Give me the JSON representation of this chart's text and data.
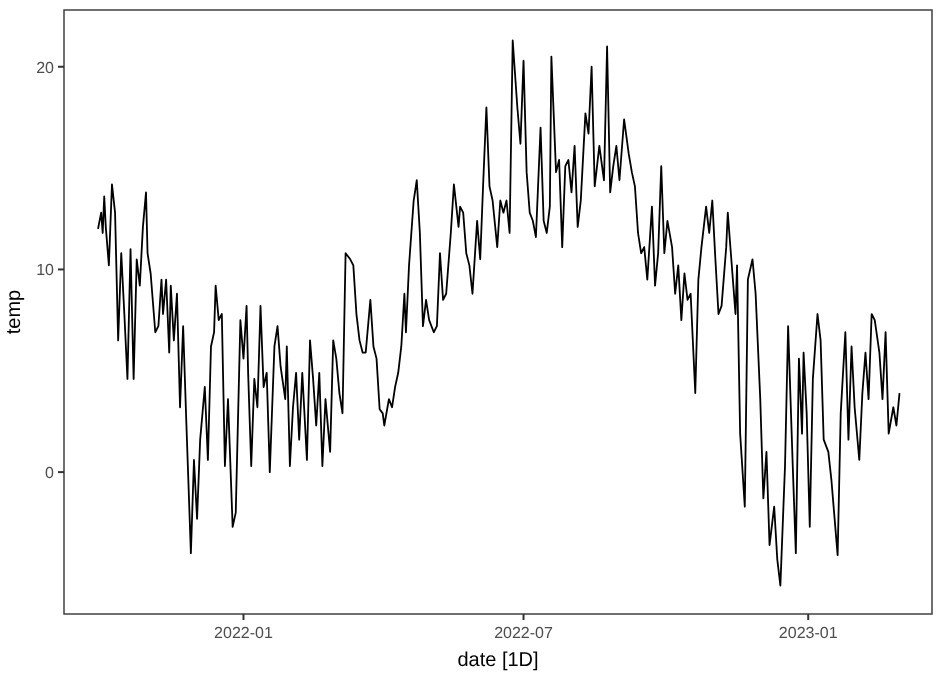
{
  "chart_data": {
    "type": "line",
    "xlabel": "date [1D]",
    "ylabel": "temp",
    "xlim": [
      "2021-09-07",
      "2023-03-22"
    ],
    "ylim": [
      -7,
      22.8
    ],
    "xticks": [
      {
        "value": "2022-01-01",
        "label": "2022-01"
      },
      {
        "value": "2022-07-01",
        "label": "2022-07"
      },
      {
        "value": "2023-01-01",
        "label": "2023-01"
      }
    ],
    "yticks": [
      0,
      10,
      20
    ],
    "grid": false,
    "marker": "none",
    "line_style": "solid",
    "x": [
      "2021-09-29",
      "2021-10-01",
      "2021-10-02",
      "2021-10-03",
      "2021-10-04",
      "2021-10-06",
      "2021-10-08",
      "2021-10-10",
      "2021-10-12",
      "2021-10-14",
      "2021-10-16",
      "2021-10-18",
      "2021-10-20",
      "2021-10-22",
      "2021-10-24",
      "2021-10-26",
      "2021-10-28",
      "2021-10-30",
      "2021-10-31",
      "2021-11-02",
      "2021-11-05",
      "2021-11-07",
      "2021-11-09",
      "2021-11-10",
      "2021-11-12",
      "2021-11-14",
      "2021-11-15",
      "2021-11-17",
      "2021-11-19",
      "2021-11-21",
      "2021-11-23",
      "2021-11-25",
      "2021-11-28",
      "2021-11-30",
      "2021-12-02",
      "2021-12-04",
      "2021-12-07",
      "2021-12-09",
      "2021-12-11",
      "2021-12-13",
      "2021-12-14",
      "2021-12-16",
      "2021-12-18",
      "2021-12-20",
      "2021-12-22",
      "2021-12-25",
      "2021-12-27",
      "2021-12-30",
      "2022-01-01",
      "2022-01-03",
      "2022-01-04",
      "2022-01-06",
      "2022-01-08",
      "2022-01-10",
      "2022-01-12",
      "2022-01-14",
      "2022-01-16",
      "2022-01-18",
      "2022-01-21",
      "2022-01-23",
      "2022-01-25",
      "2022-01-28",
      "2022-01-29",
      "2022-01-31",
      "2022-02-02",
      "2022-02-04",
      "2022-02-06",
      "2022-02-08",
      "2022-02-11",
      "2022-02-13",
      "2022-02-15",
      "2022-02-17",
      "2022-02-19",
      "2022-02-21",
      "2022-02-23",
      "2022-02-26",
      "2022-02-28",
      "2022-03-02",
      "2022-03-04",
      "2022-03-06",
      "2022-03-08",
      "2022-03-11",
      "2022-03-13",
      "2022-03-15",
      "2022-03-17",
      "2022-03-19",
      "2022-03-21",
      "2022-03-24",
      "2022-03-26",
      "2022-03-28",
      "2022-03-30",
      "2022-04-01",
      "2022-04-02",
      "2022-04-05",
      "2022-04-07",
      "2022-04-09",
      "2022-04-11",
      "2022-04-13",
      "2022-04-15",
      "2022-04-16",
      "2022-04-18",
      "2022-04-21",
      "2022-04-23",
      "2022-04-25",
      "2022-04-27",
      "2022-04-29",
      "2022-05-01",
      "2022-05-04",
      "2022-05-06",
      "2022-05-08",
      "2022-05-10",
      "2022-05-12",
      "2022-05-15",
      "2022-05-17",
      "2022-05-20",
      "2022-05-21",
      "2022-05-23",
      "2022-05-25",
      "2022-05-27",
      "2022-05-29",
      "2022-06-01",
      "2022-06-03",
      "2022-06-05",
      "2022-06-07",
      "2022-06-09",
      "2022-06-11",
      "2022-06-14",
      "2022-06-16",
      "2022-06-18",
      "2022-06-20",
      "2022-06-22",
      "2022-06-24",
      "2022-06-27",
      "2022-06-29",
      "2022-07-01",
      "2022-07-03",
      "2022-07-05",
      "2022-07-07",
      "2022-07-09",
      "2022-07-12",
      "2022-07-14",
      "2022-07-16",
      "2022-07-18",
      "2022-07-19",
      "2022-07-22",
      "2022-07-24",
      "2022-07-26",
      "2022-07-28",
      "2022-07-30",
      "2022-08-01",
      "2022-08-03",
      "2022-08-05",
      "2022-08-07",
      "2022-08-10",
      "2022-08-12",
      "2022-08-14",
      "2022-08-16",
      "2022-08-19",
      "2022-08-22",
      "2022-08-24",
      "2022-08-26",
      "2022-08-28",
      "2022-08-30",
      "2022-09-01",
      "2022-09-04",
      "2022-09-07",
      "2022-09-09",
      "2022-09-11",
      "2022-09-13",
      "2022-09-15",
      "2022-09-17",
      "2022-09-19",
      "2022-09-22",
      "2022-09-24",
      "2022-09-26",
      "2022-09-28",
      "2022-09-30",
      "2022-10-02",
      "2022-10-05",
      "2022-10-07",
      "2022-10-09",
      "2022-10-11",
      "2022-10-13",
      "2022-10-15",
      "2022-10-17",
      "2022-10-20",
      "2022-10-22",
      "2022-10-24",
      "2022-10-27",
      "2022-10-29",
      "2022-10-31",
      "2022-11-02",
      "2022-11-04",
      "2022-11-06",
      "2022-11-09",
      "2022-11-10",
      "2022-11-12",
      "2022-11-15",
      "2022-11-16",
      "2022-11-18",
      "2022-11-21",
      "2022-11-23",
      "2022-11-26",
      "2022-11-28",
      "2022-12-01",
      "2022-12-03",
      "2022-12-05",
      "2022-12-07",
      "2022-12-10",
      "2022-12-12",
      "2022-12-14",
      "2022-12-17",
      "2022-12-19",
      "2022-12-22",
      "2022-12-24",
      "2022-12-26",
      "2022-12-28",
      "2022-12-29",
      "2022-12-31",
      "2023-01-02",
      "2023-01-04",
      "2023-01-07",
      "2023-01-09",
      "2023-01-11",
      "2023-01-14",
      "2023-01-16",
      "2023-01-20",
      "2023-01-22",
      "2023-01-25",
      "2023-01-27",
      "2023-01-29",
      "2023-01-31",
      "2023-02-03",
      "2023-02-05",
      "2023-02-07",
      "2023-02-09",
      "2023-02-11",
      "2023-02-13",
      "2023-02-16",
      "2023-02-18",
      "2023-02-20",
      "2023-02-22",
      "2023-02-25",
      "2023-02-27",
      "2023-03-01"
    ],
    "series": [
      {
        "color": "#000000",
        "values": [
          12.0,
          12.8,
          11.8,
          13.6,
          12.1,
          10.2,
          14.2,
          12.8,
          6.5,
          10.8,
          7.8,
          4.6,
          11.0,
          4.6,
          10.5,
          9.2,
          12.1,
          13.8,
          10.8,
          9.8,
          6.9,
          7.2,
          9.5,
          7.8,
          9.5,
          5.9,
          9.2,
          6.5,
          8.8,
          3.2,
          7.2,
          2.6,
          -4.0,
          0.6,
          -2.3,
          1.6,
          4.2,
          0.6,
          6.2,
          6.9,
          9.2,
          7.5,
          7.8,
          0.3,
          3.6,
          -2.7,
          -2.0,
          7.5,
          5.6,
          8.2,
          4.9,
          0.3,
          4.6,
          3.2,
          8.2,
          4.2,
          4.9,
          0.0,
          6.2,
          7.2,
          5.2,
          3.6,
          6.2,
          0.3,
          3.2,
          4.9,
          1.6,
          4.9,
          0.6,
          6.5,
          4.6,
          2.3,
          4.9,
          0.3,
          3.6,
          1.0,
          6.5,
          5.6,
          3.9,
          2.9,
          10.8,
          10.5,
          10.2,
          7.8,
          6.5,
          5.9,
          5.9,
          8.5,
          6.2,
          5.6,
          3.1,
          2.9,
          2.3,
          3.6,
          3.2,
          4.2,
          4.9,
          6.2,
          8.8,
          6.9,
          10.2,
          13.4,
          14.4,
          11.8,
          7.2,
          8.5,
          7.5,
          6.9,
          7.2,
          10.8,
          8.5,
          8.8,
          11.8,
          14.2,
          12.1,
          13.1,
          12.8,
          10.8,
          10.2,
          8.8,
          12.4,
          10.5,
          14.4,
          18.0,
          14.1,
          13.4,
          11.1,
          13.4,
          12.8,
          13.4,
          11.8,
          21.3,
          18.0,
          16.2,
          20.3,
          14.8,
          12.8,
          12.4,
          11.6,
          17.0,
          12.4,
          11.8,
          13.1,
          20.5,
          14.8,
          15.4,
          11.1,
          15.1,
          15.4,
          13.8,
          16.1,
          12.1,
          13.4,
          17.7,
          16.7,
          20.0,
          14.1,
          16.1,
          14.4,
          21.0,
          13.8,
          15.1,
          16.1,
          14.4,
          17.4,
          15.7,
          14.8,
          14.1,
          11.8,
          10.8,
          11.1,
          9.5,
          13.1,
          9.2,
          10.8,
          15.1,
          10.8,
          12.4,
          11.1,
          8.8,
          10.2,
          7.5,
          9.8,
          8.5,
          8.8,
          3.9,
          9.5,
          11.1,
          13.1,
          11.8,
          13.4,
          10.5,
          7.8,
          8.2,
          11.1,
          12.8,
          10.8,
          7.8,
          10.2,
          1.9,
          -1.7,
          9.5,
          10.5,
          8.8,
          3.6,
          -1.3,
          1.0,
          -3.6,
          -1.7,
          -4.3,
          -5.6,
          0.3,
          7.2,
          0.3,
          -4.0,
          5.6,
          1.9,
          5.9,
          2.9,
          -2.7,
          4.6,
          7.8,
          6.5,
          1.6,
          1.0,
          -0.4,
          -4.1,
          2.9,
          6.9,
          1.6,
          6.2,
          3.2,
          0.6,
          3.9,
          5.9,
          3.6,
          7.8,
          7.5,
          5.9,
          3.6,
          6.9,
          1.9,
          3.2,
          2.3,
          3.9
        ]
      }
    ]
  }
}
